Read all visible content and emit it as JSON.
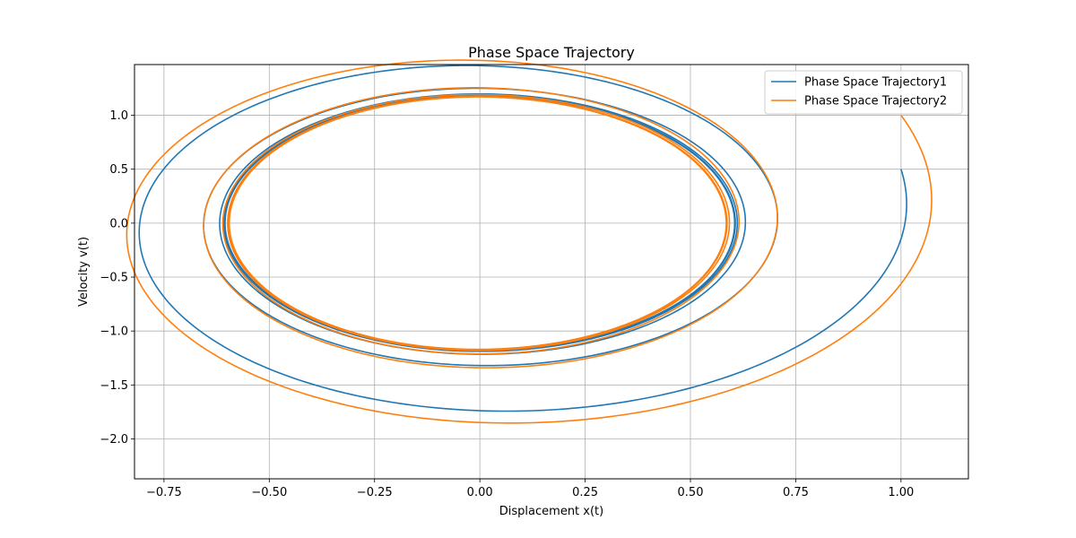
{
  "chart_data": {
    "type": "line",
    "title": "Phase Space Trajectory",
    "xlabel": "Displacement x(t)",
    "ylabel": "Velocity v(t)",
    "xlim": [
      -0.82,
      1.16
    ],
    "ylim": [
      -2.37,
      1.47
    ],
    "xticks": [
      -0.75,
      -0.5,
      -0.25,
      0.0,
      0.25,
      0.5,
      0.75,
      1.0
    ],
    "yticks": [
      -2.0,
      -1.5,
      -1.0,
      -0.5,
      0.0,
      0.5,
      1.0
    ],
    "xtick_labels": [
      "−0.75",
      "−0.50",
      "−0.25",
      "0.00",
      "0.25",
      "0.50",
      "0.75",
      "1.00"
    ],
    "ytick_labels": [
      "−2.0",
      "−1.5",
      "−1.0",
      "−0.5",
      "0.0",
      "0.5",
      "1.0"
    ],
    "grid": true,
    "legend_position": "top-right",
    "series": [
      {
        "name": "Phase Space Trajectory1",
        "color": "#1f77b4",
        "model": {
          "x0": 1.0,
          "v0": 0.5,
          "x_c": 0.0,
          "v_c": 0.0,
          "a_inf": 0.605,
          "b_inf": 1.18,
          "t_max": 60
        }
      },
      {
        "name": "Phase Space Trajectory2",
        "color": "#ff7f0e",
        "model": {
          "x0": 1.0,
          "v0": 1.0,
          "x_c": -0.005,
          "v_c": 0.0,
          "a_inf": 0.59,
          "b_inf": 1.17,
          "t_max": 60
        }
      }
    ]
  }
}
